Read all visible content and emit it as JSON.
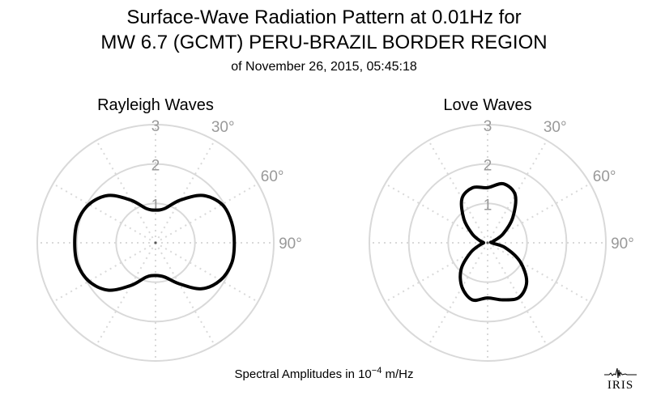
{
  "title_line1": "Surface-Wave Radiation Pattern at 0.01Hz for",
  "title_line2": "MW 6.7 (GCMT) PERU-BRAZIL BORDER REGION",
  "subtitle": "of November 26, 2015, 05:45:18",
  "footer_prefix": "Spectral Amplitudes in 10",
  "footer_exp": "−4",
  "footer_suffix": " m/Hz",
  "logo_text": "IRIS",
  "colors": {
    "grid": "#d9d9d9",
    "tick_label": "#999999",
    "curve": "#000000"
  },
  "chart_data": [
    {
      "type": "polar-line",
      "title": "Rayleigh Waves",
      "r_ticks": [
        1,
        2,
        3
      ],
      "angle_ticks": [
        "30°",
        "60°",
        "90°"
      ],
      "rmax": 3,
      "grid": true,
      "series": [
        {
          "theta_deg": [
            0,
            15,
            30,
            45,
            60,
            75,
            90,
            105,
            120,
            135,
            150,
            165,
            180,
            195,
            210,
            225,
            240,
            255,
            270,
            285,
            300,
            315,
            330,
            345
          ],
          "r": [
            0.83,
            0.9,
            1.25,
            1.7,
            1.95,
            2.0,
            2.0,
            2.0,
            1.9,
            1.65,
            1.2,
            0.9,
            0.83,
            0.9,
            1.25,
            1.7,
            1.95,
            2.05,
            2.05,
            2.05,
            1.95,
            1.7,
            1.25,
            0.9
          ]
        }
      ]
    },
    {
      "type": "polar-line",
      "title": "Love Waves",
      "r_ticks": [
        1,
        2,
        3
      ],
      "angle_ticks": [
        "30°",
        "60°",
        "90°"
      ],
      "rmax": 3,
      "grid": true,
      "series": [
        {
          "theta_deg": [
            0,
            15,
            30,
            45,
            60,
            75,
            90,
            105,
            120,
            135,
            150,
            165,
            180,
            195,
            210,
            225,
            240,
            255,
            270,
            285,
            300,
            315,
            330,
            345
          ],
          "r": [
            1.4,
            1.55,
            1.4,
            0.9,
            0.45,
            0.15,
            0.1,
            0.45,
            0.95,
            1.4,
            1.6,
            1.5,
            1.4,
            1.5,
            1.3,
            0.95,
            0.5,
            0.2,
            0.1,
            0.2,
            0.45,
            0.85,
            1.3,
            1.45
          ]
        }
      ]
    }
  ]
}
